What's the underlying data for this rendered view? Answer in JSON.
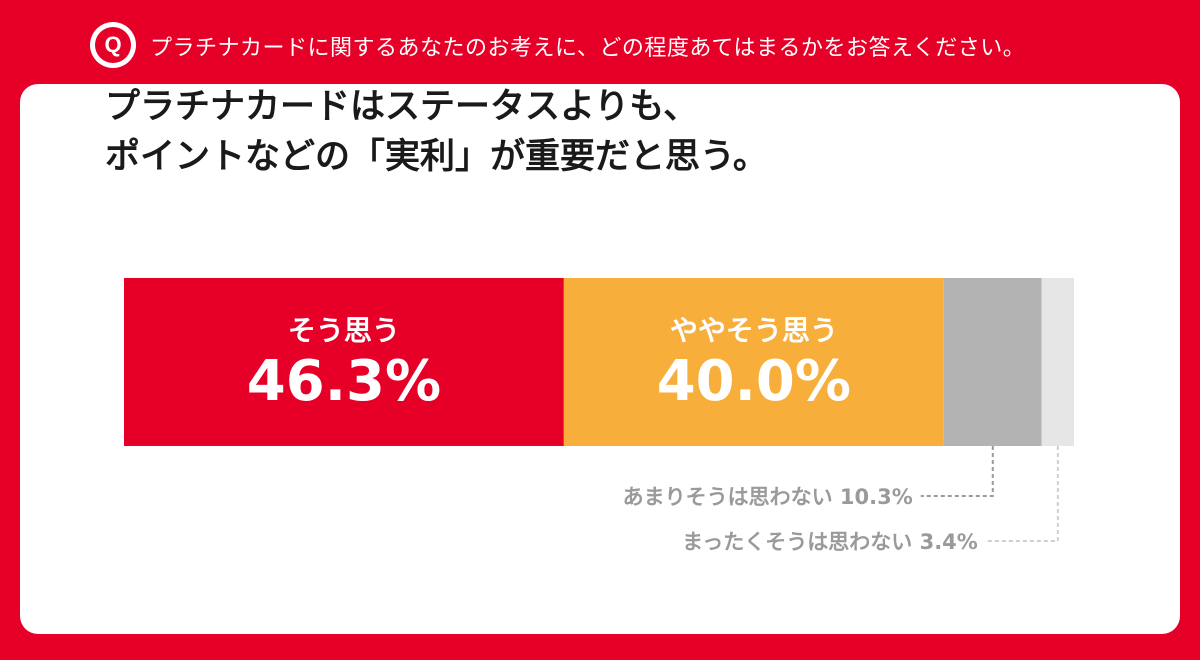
{
  "header": {
    "badge": "Q",
    "question": "プラチナカードに関するあなたのお考えに、どの程度あてはまるかをお答えください。"
  },
  "statement": {
    "line1": "プラチナカードはステータスよりも、",
    "line2": "ポイントなどの「実利」が重要だと思う。"
  },
  "colors": {
    "brand_red": "#e60028",
    "agree": "#e60028",
    "somewhat_agree": "#f7ae3a",
    "somewhat_disagree": "#b3b3b3",
    "disagree": "#e6e6e6"
  },
  "chart_data": {
    "type": "bar",
    "orientation": "horizontal-stacked",
    "unit": "%",
    "categories": [
      "そう思う",
      "ややそう思う",
      "あまりそうは思わない",
      "まったくそうは思わない"
    ],
    "values": [
      46.3,
      40.0,
      10.3,
      3.4
    ],
    "labels": [
      "46.3%",
      "40.0%",
      "10.3%",
      "3.4%"
    ]
  }
}
